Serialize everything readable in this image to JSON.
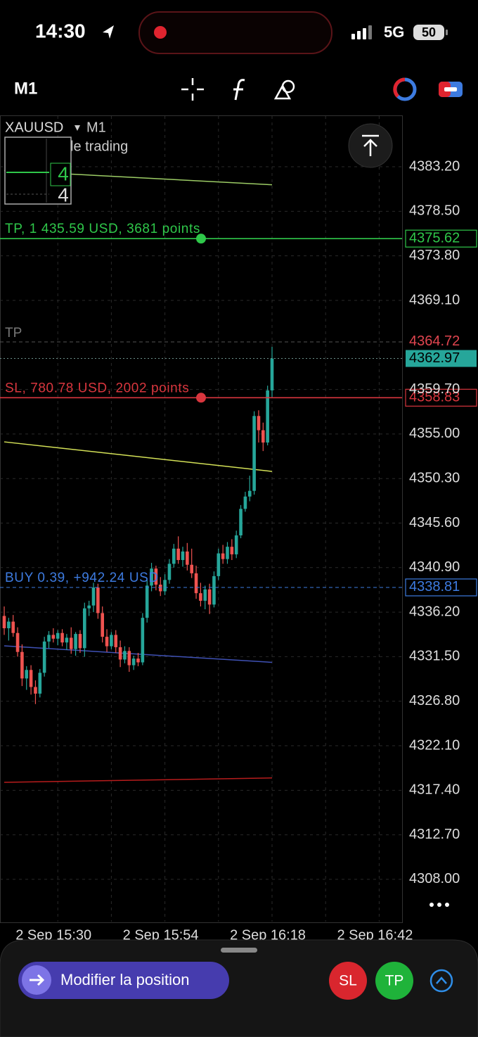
{
  "status_bar": {
    "time": "14:30",
    "network": "5G",
    "battery": "50"
  },
  "toolbar": {
    "timeframe": "M1"
  },
  "chart_data": {
    "type": "candlestick",
    "symbol": "XAUUSD",
    "timeframe": "M1",
    "overlay_text": "le trading",
    "inset_labels": [
      "4",
      "4"
    ],
    "up_color": "#26a69a",
    "down_color": "#ef5350",
    "grid": true,
    "ylim": [
      4303.54,
      4388.55
    ],
    "yticks": [
      {
        "value": 4383.2,
        "label": "4383.20"
      },
      {
        "value": 4378.5,
        "label": "4378.50"
      },
      {
        "value": 4373.8,
        "label": "4373.80"
      },
      {
        "value": 4369.1,
        "label": "4369.10"
      },
      {
        "value": 4359.7,
        "label": "4359.70"
      },
      {
        "value": 4355.0,
        "label": "4355.00"
      },
      {
        "value": 4350.3,
        "label": "4350.30"
      },
      {
        "value": 4345.6,
        "label": "4345.60"
      },
      {
        "value": 4340.9,
        "label": "4340.90"
      },
      {
        "value": 4336.2,
        "label": "4336.20"
      },
      {
        "value": 4331.5,
        "label": "4331.50"
      },
      {
        "value": 4326.8,
        "label": "4326.80"
      },
      {
        "value": 4322.1,
        "label": "4322.10"
      },
      {
        "value": 4317.4,
        "label": "4317.40"
      },
      {
        "value": 4312.7,
        "label": "4312.70"
      },
      {
        "value": 4308.0,
        "label": "4308.00"
      }
    ],
    "categories": [
      null,
      null,
      null,
      null,
      null,
      null,
      null,
      null,
      null,
      null,
      null,
      null,
      "2 Sep 15:30",
      null,
      null,
      null,
      null,
      null,
      null,
      null,
      null,
      null,
      null,
      null,
      null,
      null,
      null,
      null,
      null,
      null,
      null,
      null,
      null,
      null,
      null,
      null,
      "2 Sep 15:54",
      null,
      null,
      null,
      null,
      null,
      null,
      null,
      null,
      null,
      null,
      null,
      null,
      null,
      null,
      null,
      null,
      null,
      null,
      null,
      null,
      null,
      null,
      null,
      "2 Sep 16:18",
      null,
      null,
      null,
      null,
      null,
      null,
      null,
      null,
      null,
      null,
      null,
      null,
      null,
      null,
      null,
      null,
      null,
      null,
      null,
      null,
      null,
      null,
      null,
      "2 Sep 16:42"
    ],
    "open": [
      4335.8,
      4334.5,
      4335.2,
      4334.0,
      4332.0,
      4329.2,
      4330.1,
      4328.3,
      4327.6,
      4329.8,
      4333.1,
      4333.8,
      4333.4,
      4334.0,
      4333.0,
      4333.5,
      4332.3,
      4333.9,
      4332.4,
      4336.6,
      4336.9,
      4338.8,
      4336.1,
      4333.6,
      4332.6,
      4333.8,
      4332.5,
      4331.2,
      4332.1,
      4330.6,
      4331.3,
      4330.9,
      4335.6,
      4339.0,
      4340.8,
      4339.1,
      4338.4,
      4339.6,
      4341.3,
      4342.9,
      4341.7,
      4342.6,
      4341.2,
      4340.3,
      4338.2,
      4337.4,
      4338.6,
      4337.0,
      4340.0,
      4342.4,
      4341.8,
      4343.1,
      4342.3,
      4344.3,
      4347.1,
      4348.4,
      4349.0,
      4356.9,
      4355.4,
      4354.1,
      4359.6,
      null,
      null,
      null,
      null,
      null,
      null,
      null,
      null,
      null,
      null,
      null,
      null,
      null,
      null,
      null,
      null,
      null,
      null,
      null,
      null,
      null,
      null,
      null,
      null
    ],
    "high": [
      4336.8,
      4335.6,
      4335.9,
      4334.6,
      4332.8,
      4330.5,
      4330.6,
      4329.0,
      4330.2,
      4333.6,
      4334.2,
      4334.5,
      4334.3,
      4334.4,
      4333.9,
      4334.6,
      4334.1,
      4334.3,
      4337.2,
      4337.4,
      4339.3,
      4339.2,
      4336.8,
      4334.4,
      4334.1,
      4334.3,
      4333.2,
      4332.6,
      4332.5,
      4331.6,
      4331.9,
      4336.1,
      4339.6,
      4341.4,
      4341.1,
      4339.9,
      4340.2,
      4341.8,
      4343.4,
      4344.2,
      4343.1,
      4343.5,
      4342.9,
      4341.1,
      4339.3,
      4339.0,
      4339.2,
      4340.5,
      4342.9,
      4343.3,
      4343.6,
      4343.9,
      4344.8,
      4347.5,
      4348.9,
      4350.6,
      4357.4,
      4357.5,
      4356.2,
      4360.1,
      4364.2,
      null,
      null,
      null,
      null,
      null,
      null,
      null,
      null,
      null,
      null,
      null,
      null,
      null,
      null,
      null,
      null,
      null,
      null,
      null,
      null,
      null,
      null,
      null,
      null
    ],
    "low": [
      4333.8,
      4333.2,
      4333.6,
      4331.5,
      4328.4,
      4328.0,
      4327.5,
      4326.5,
      4327.2,
      4329.4,
      4332.4,
      4333.0,
      4332.7,
      4332.6,
      4332.2,
      4331.8,
      4331.6,
      4331.9,
      4331.5,
      4335.8,
      4336.2,
      4335.5,
      4333.0,
      4332.0,
      4332.3,
      4331.9,
      4330.4,
      4330.8,
      4329.9,
      4330.1,
      4330.5,
      4330.6,
      4335.1,
      4338.4,
      4338.5,
      4337.9,
      4338.0,
      4339.2,
      4340.9,
      4341.3,
      4341.0,
      4340.6,
      4339.8,
      4337.6,
      4336.8,
      4336.5,
      4336.0,
      4336.7,
      4339.6,
      4341.3,
      4341.3,
      4341.7,
      4341.9,
      4344.0,
      4346.8,
      4347.9,
      4348.6,
      4354.1,
      4353.2,
      4353.8,
      4358.9,
      null,
      null,
      null,
      null,
      null,
      null,
      null,
      null,
      null,
      null,
      null,
      null,
      null,
      null,
      null,
      null,
      null,
      null,
      null,
      null,
      null,
      null,
      null,
      null
    ],
    "close": [
      4334.5,
      4335.2,
      4334.0,
      4332.0,
      4329.2,
      4330.1,
      4328.3,
      4327.6,
      4329.8,
      4333.1,
      4333.8,
      4333.4,
      4334.0,
      4333.0,
      4333.5,
      4332.3,
      4333.9,
      4332.4,
      4336.6,
      4336.9,
      4338.8,
      4336.1,
      4333.6,
      4332.6,
      4333.8,
      4332.5,
      4331.2,
      4332.1,
      4330.6,
      4331.3,
      4330.9,
      4335.6,
      4339.0,
      4340.8,
      4339.1,
      4338.4,
      4339.6,
      4341.3,
      4342.9,
      4341.7,
      4342.6,
      4341.2,
      4340.3,
      4338.2,
      4337.4,
      4338.6,
      4337.0,
      4340.0,
      4342.4,
      4341.8,
      4343.1,
      4342.3,
      4344.3,
      4347.1,
      4348.4,
      4349.0,
      4356.9,
      4355.4,
      4354.1,
      4359.6,
      4362.97,
      null,
      null,
      null,
      null,
      null,
      null,
      null,
      null,
      null,
      null,
      null,
      null,
      null,
      null,
      null,
      null,
      null,
      null,
      null,
      null,
      null,
      null,
      null,
      null
    ],
    "indicators": [
      {
        "color": "#9ccc65",
        "values": [
          4382.8,
          4381.3
        ]
      },
      {
        "color": "#d4e157",
        "values": [
          4354.17,
          4351.05
        ]
      },
      {
        "color": "#3f51b5",
        "values": [
          4332.64,
          4330.9
        ]
      },
      {
        "color": "#b71c1c",
        "values": [
          4318.24,
          4318.7
        ]
      }
    ],
    "levels": [
      {
        "label": "TP, 1 435.59 USD, 3681 points",
        "value": 4375.62,
        "color": "#2fc84a"
      },
      {
        "label": "SL, 780.78 USD, 2002 points",
        "value": 4358.83,
        "color": "#d9363e"
      },
      {
        "label": "BUY 0.39, +942.24 USD",
        "value": 4338.81,
        "color": "#3d7be0",
        "dashed": true
      }
    ],
    "price_lines": [
      {
        "label": "TP",
        "value": 4364.72,
        "color": "#e0454f"
      },
      {
        "value": 4362.97,
        "color": "#26a69a",
        "filled": true
      }
    ]
  },
  "bottom_bar": {
    "button": "Modifier la position",
    "sl": "SL",
    "tp": "TP"
  }
}
